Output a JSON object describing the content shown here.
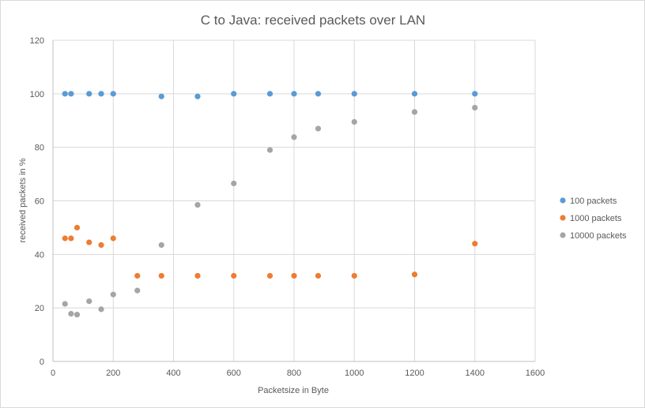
{
  "chart_data": {
    "type": "scatter",
    "title": "C to Java: received packets over LAN",
    "xlabel": "Packetsize in Byte",
    "ylabel": "received packets in %",
    "xlim": [
      0,
      1600
    ],
    "ylim": [
      0,
      120
    ],
    "x_ticks": [
      0,
      200,
      400,
      600,
      800,
      1000,
      1200,
      1400,
      1600
    ],
    "y_ticks": [
      0,
      20,
      40,
      60,
      80,
      100,
      120
    ],
    "grid": true,
    "legend_position": "right",
    "series": [
      {
        "name": "100  packets",
        "color": "#5b9bd5",
        "points": [
          [
            40,
            100
          ],
          [
            60,
            100
          ],
          [
            120,
            100
          ],
          [
            160,
            100
          ],
          [
            200,
            100
          ],
          [
            360,
            99
          ],
          [
            480,
            99
          ],
          [
            600,
            100
          ],
          [
            720,
            100
          ],
          [
            800,
            100
          ],
          [
            880,
            100
          ],
          [
            1000,
            100
          ],
          [
            1200,
            100
          ],
          [
            1400,
            100
          ]
        ]
      },
      {
        "name": "1000  packets",
        "color": "#ed7d31",
        "points": [
          [
            40,
            46
          ],
          [
            60,
            46
          ],
          [
            80,
            50
          ],
          [
            120,
            44.5
          ],
          [
            160,
            43.5
          ],
          [
            200,
            46
          ],
          [
            280,
            32
          ],
          [
            360,
            32
          ],
          [
            480,
            32
          ],
          [
            600,
            32
          ],
          [
            720,
            32
          ],
          [
            800,
            32
          ],
          [
            880,
            32
          ],
          [
            1000,
            32
          ],
          [
            1200,
            32.5
          ],
          [
            1400,
            44
          ]
        ]
      },
      {
        "name": "10000  packets",
        "color": "#a5a5a5",
        "points": [
          [
            40,
            21.5
          ],
          [
            60,
            17.8
          ],
          [
            80,
            17.5
          ],
          [
            120,
            22.5
          ],
          [
            160,
            19.5
          ],
          [
            200,
            25
          ],
          [
            280,
            26.5
          ],
          [
            360,
            43.5
          ],
          [
            480,
            58.5
          ],
          [
            600,
            66.5
          ],
          [
            720,
            79
          ],
          [
            800,
            83.8
          ],
          [
            880,
            87
          ],
          [
            1000,
            89.5
          ],
          [
            1200,
            93.2
          ],
          [
            1400,
            94.8
          ]
        ]
      }
    ]
  }
}
